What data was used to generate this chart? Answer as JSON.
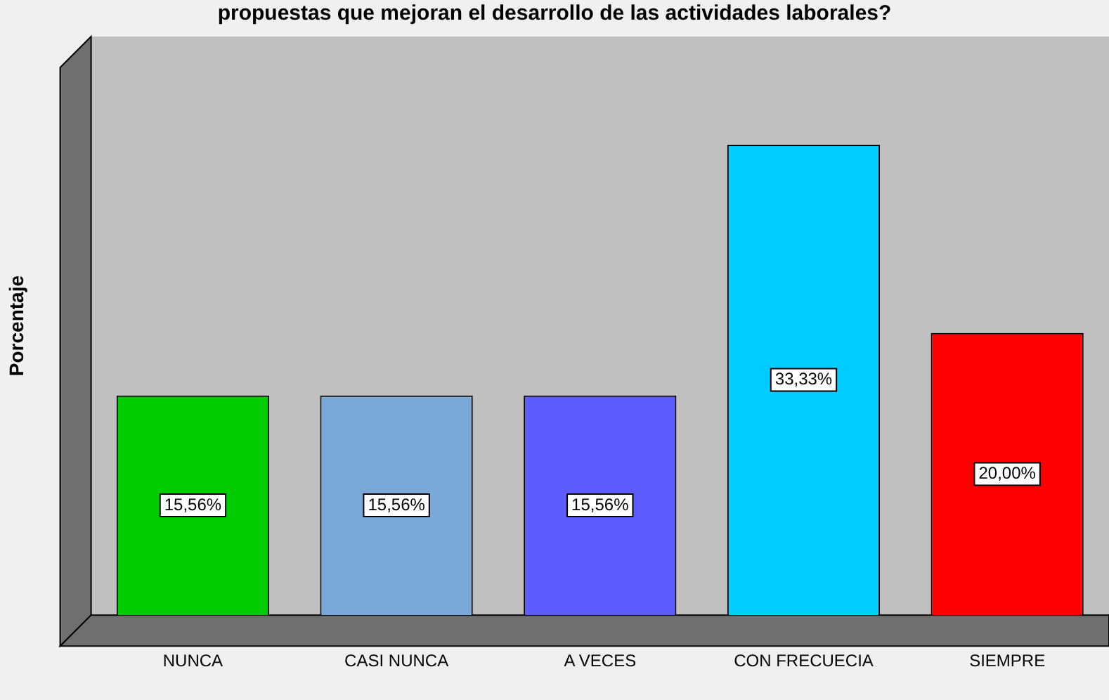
{
  "chart_data": {
    "type": "bar",
    "title": "propuestas que mejoran el desarrollo de las actividades laborales?",
    "ylabel": "Porcentaje",
    "categories": [
      "NUNCA",
      "CASI NUNCA",
      "A VECES",
      "CON FRECUECIA",
      "SIEMPRE"
    ],
    "values": [
      15.56,
      15.56,
      15.56,
      33.33,
      20.0
    ],
    "value_labels": [
      "15,56%",
      "15,56%",
      "15,56%",
      "33,33%",
      "20,00%"
    ],
    "colors": [
      "#00cc00",
      "#7aa8d8",
      "#5c5cff",
      "#00ccff",
      "#ff0000"
    ],
    "ylim": [
      0,
      41
    ],
    "tick_labels": "x",
    "grid": false,
    "legend": false
  }
}
